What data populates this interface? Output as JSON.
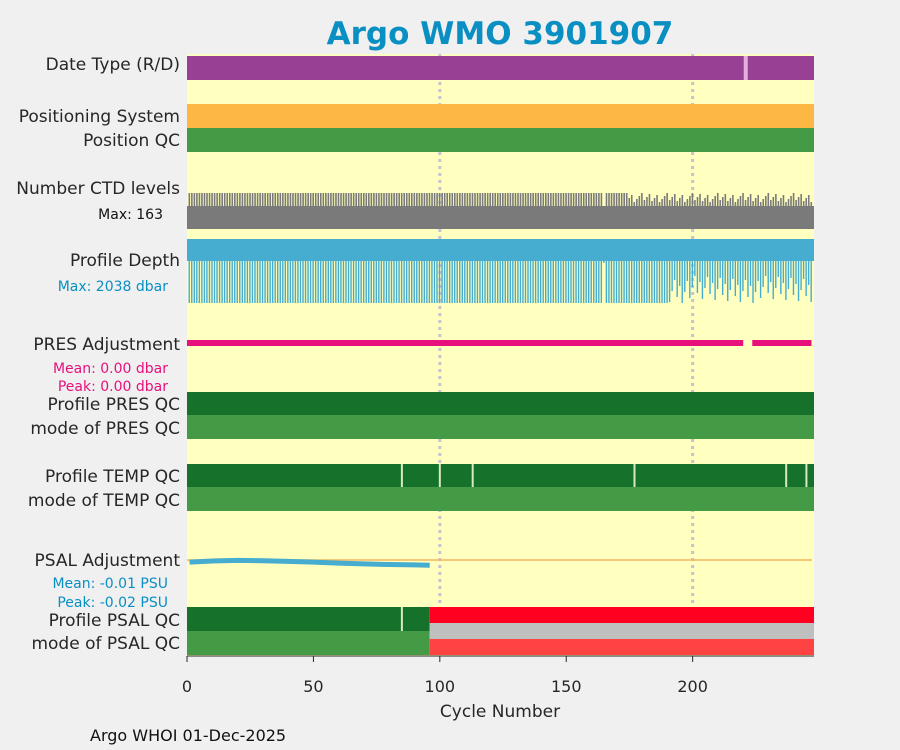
{
  "chart_data": {
    "type": "timeline",
    "title": "Argo WMO 3901907",
    "xlabel": "Cycle Number",
    "xlim": [
      0,
      248
    ],
    "xticks": [
      0,
      50,
      100,
      150,
      200
    ],
    "footer": "Argo WHOI 01-Dec-2025",
    "rows": {
      "date_type": {
        "label": "Date Type (R/D)",
        "color": "#984093",
        "gap_color": "#e2b0dc",
        "gaps": [
          221
        ]
      },
      "positioning_system": {
        "label": "Positioning System",
        "color": "#fdb744"
      },
      "position_qc": {
        "label": "Position QC",
        "color": "#459a45"
      },
      "ctd_levels": {
        "label": "Number CTD levels",
        "max_text": "Max: 163",
        "color": "#7a7a7a",
        "max_value": 163,
        "low_cycles": [
          165
        ]
      },
      "profile_depth": {
        "label": "Profile Depth",
        "max_text": "Max: 2038 dbar",
        "color": "#46acd0",
        "text_color": "#0a8fc2",
        "max_value": 2038,
        "low_cycles": [
          165
        ]
      },
      "pres_adjustment": {
        "label": "PRES Adjustment",
        "mean_text": "Mean: 0.00 dbar",
        "peak_text": "Peak: 0.00 dbar",
        "color": "#e8107d",
        "gap_range": [
          220,
          222
        ]
      },
      "profile_pres_qc": {
        "label": "Profile PRES QC",
        "color": "#16722a"
      },
      "mode_pres_qc": {
        "label": "mode of PRES QC",
        "color": "#459a45"
      },
      "profile_temp_qc": {
        "label": "Profile TEMP QC",
        "color": "#16722a",
        "breaks": [
          85,
          100,
          113,
          177,
          237,
          245
        ]
      },
      "mode_temp_qc": {
        "label": "mode of TEMP QC",
        "color": "#459a45"
      },
      "psal_adjustment": {
        "label": "PSAL Adjustment",
        "mean_text": "Mean: -0.01 PSU",
        "peak_text": "Peak: -0.02 PSU",
        "color": "#46acd0",
        "text_color": "#0a8fc2",
        "zero_line_color": "#f0b860",
        "curve_end_cycle": 96,
        "curve": [
          [
            1,
            -0.006
          ],
          [
            10,
            -0.003
          ],
          [
            20,
            -0.001
          ],
          [
            30,
            -0.002
          ],
          [
            40,
            -0.004
          ],
          [
            50,
            -0.006
          ],
          [
            60,
            -0.009
          ],
          [
            70,
            -0.011
          ],
          [
            80,
            -0.013
          ],
          [
            90,
            -0.014
          ],
          [
            96,
            -0.015
          ]
        ]
      },
      "profile_psal_qc": {
        "label": "Profile PSAL QC",
        "color_good": "#16722a",
        "color_bad": "#ff0020",
        "good_until": 96,
        "breaks": [
          85
        ]
      },
      "mode_psal_qc": {
        "label": "mode of PSAL QC",
        "color_good": "#459a45",
        "color_gray": "#bfbfbf",
        "color_bad": "#ff4242",
        "good_until": 96
      }
    }
  }
}
